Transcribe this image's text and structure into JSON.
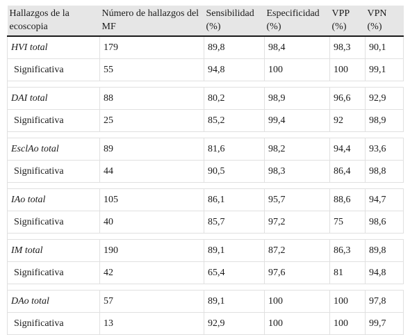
{
  "table": {
    "headers": [
      "Hallazgos de la ecoscopia",
      "Número de hallazgos del MF",
      "Sensibilidad (%)",
      "Especificidad (%)",
      "VPP (%)",
      "VPN (%)"
    ],
    "groups": [
      {
        "total": [
          "HVI total",
          "179",
          "89,8",
          "98,4",
          "98,3",
          "90,1"
        ],
        "sig": [
          "Significativa",
          "55",
          "94,8",
          "100",
          "100",
          "99,1"
        ]
      },
      {
        "total": [
          "DAI total",
          "88",
          "80,2",
          "98,9",
          "96,6",
          "92,9"
        ],
        "sig": [
          "Significativa",
          "25",
          "85,2",
          "99,4",
          "92",
          "98,9"
        ]
      },
      {
        "total": [
          "EsclAo total",
          "89",
          "81,6",
          "98,2",
          "94,4",
          "93,6"
        ],
        "sig": [
          "Significativa",
          "44",
          "90,5",
          "98,3",
          "86,4",
          "98,8"
        ]
      },
      {
        "total": [
          "IAo total",
          "105",
          "86,1",
          "95,7",
          "88,6",
          "94,7"
        ],
        "sig": [
          "Significativa",
          "40",
          "85,7",
          "97,2",
          "75",
          "98,6"
        ]
      },
      {
        "total": [
          "IM total",
          "190",
          "89,1",
          "87,2",
          "86,3",
          "89,8"
        ],
        "sig": [
          "Significativa",
          "42",
          "65,4",
          "97,6",
          "81",
          "94,8"
        ]
      },
      {
        "total": [
          "DAo total",
          "57",
          "89,1",
          "100",
          "100",
          "97,8"
        ],
        "sig": [
          "Significativa",
          "13",
          "92,9",
          "100",
          "100",
          "99,7"
        ]
      }
    ]
  }
}
